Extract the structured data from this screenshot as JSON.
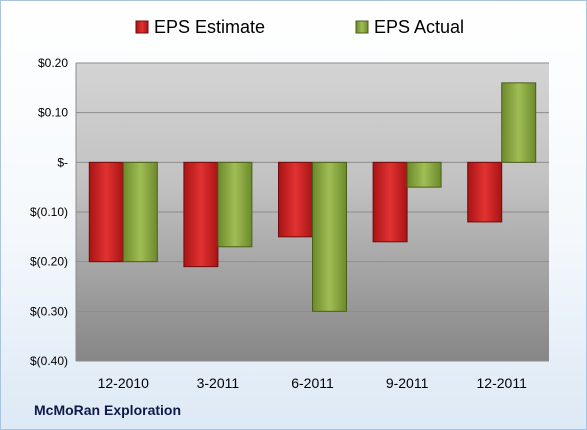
{
  "footer": {
    "company": "McMoRan Exploration"
  },
  "chart_data": {
    "type": "bar",
    "categories": [
      "12-2010",
      "3-2011",
      "6-2011",
      "9-2011",
      "12-2011"
    ],
    "series": [
      {
        "name": "EPS Estimate",
        "color": "#cc1f1f",
        "values": [
          -0.2,
          -0.21,
          -0.15,
          -0.16,
          -0.12
        ]
      },
      {
        "name": "EPS Actual",
        "color": "#8aab3c",
        "values": [
          -0.2,
          -0.17,
          -0.3,
          -0.05,
          0.16
        ]
      }
    ],
    "yticks": [
      {
        "value": 0.2,
        "label": "$0.20"
      },
      {
        "value": 0.1,
        "label": "$0.10"
      },
      {
        "value": 0,
        "label": "$-"
      },
      {
        "value": -0.1,
        "label": "$(0.10)"
      },
      {
        "value": -0.2,
        "label": "$(0.20)"
      },
      {
        "value": -0.3,
        "label": "$(0.30)"
      },
      {
        "value": -0.4,
        "label": "$(0.40)"
      }
    ],
    "ylim": [
      -0.4,
      0.2
    ],
    "grid": true,
    "legend_position": "top",
    "plot_background": "gray gradient"
  }
}
